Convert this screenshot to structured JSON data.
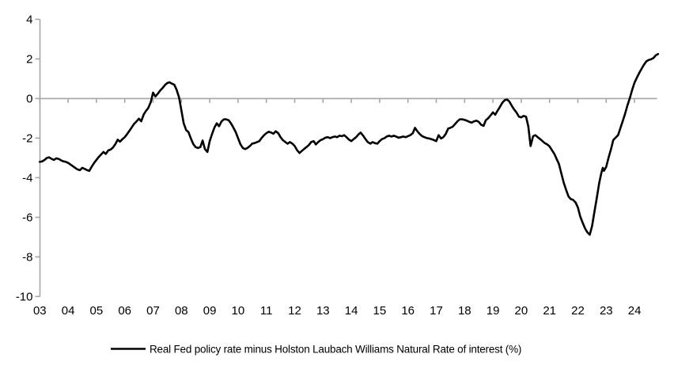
{
  "colors": {
    "background": "#ffffff",
    "axis": "#a6a6a6",
    "series_line": "#000000",
    "text": "#000000"
  },
  "chart_data": {
    "type": "line",
    "title": "",
    "xlabel": "",
    "ylabel": "",
    "ylim": [
      -10,
      4
    ],
    "y_ticks": [
      4,
      2,
      0,
      -2,
      -4,
      -6,
      -8,
      -10
    ],
    "x_tick_labels": [
      "03",
      "04",
      "05",
      "06",
      "07",
      "08",
      "09",
      "10",
      "11",
      "12",
      "13",
      "14",
      "15",
      "16",
      "17",
      "18",
      "19",
      "20",
      "21",
      "22",
      "23",
      "24"
    ],
    "x_range_years": [
      2003.0,
      2024.83
    ],
    "grid": "none",
    "axis_crosses_at_zero": true,
    "legend_position": "bottom",
    "series": [
      {
        "name": "Real Fed policy rate minus Holston Laubach Williams Natural Rate of interest (%)",
        "color": "#000000",
        "points": [
          [
            2003.0,
            -3.2
          ],
          [
            2003.08,
            -3.18
          ],
          [
            2003.17,
            -3.1
          ],
          [
            2003.25,
            -3.0
          ],
          [
            2003.33,
            -2.97
          ],
          [
            2003.42,
            -3.05
          ],
          [
            2003.5,
            -3.1
          ],
          [
            2003.58,
            -3.02
          ],
          [
            2003.67,
            -3.05
          ],
          [
            2003.75,
            -3.12
          ],
          [
            2003.83,
            -3.17
          ],
          [
            2003.92,
            -3.2
          ],
          [
            2004.0,
            -3.25
          ],
          [
            2004.08,
            -3.33
          ],
          [
            2004.17,
            -3.42
          ],
          [
            2004.25,
            -3.5
          ],
          [
            2004.33,
            -3.58
          ],
          [
            2004.42,
            -3.62
          ],
          [
            2004.5,
            -3.5
          ],
          [
            2004.58,
            -3.55
          ],
          [
            2004.67,
            -3.62
          ],
          [
            2004.75,
            -3.65
          ],
          [
            2004.83,
            -3.45
          ],
          [
            2004.92,
            -3.25
          ],
          [
            2005.0,
            -3.1
          ],
          [
            2005.08,
            -2.95
          ],
          [
            2005.17,
            -2.82
          ],
          [
            2005.25,
            -2.7
          ],
          [
            2005.33,
            -2.8
          ],
          [
            2005.42,
            -2.62
          ],
          [
            2005.5,
            -2.58
          ],
          [
            2005.58,
            -2.48
          ],
          [
            2005.67,
            -2.3
          ],
          [
            2005.75,
            -2.08
          ],
          [
            2005.83,
            -2.18
          ],
          [
            2005.92,
            -2.05
          ],
          [
            2006.0,
            -1.95
          ],
          [
            2006.08,
            -1.8
          ],
          [
            2006.17,
            -1.62
          ],
          [
            2006.25,
            -1.45
          ],
          [
            2006.33,
            -1.28
          ],
          [
            2006.42,
            -1.15
          ],
          [
            2006.5,
            -1.02
          ],
          [
            2006.58,
            -1.15
          ],
          [
            2006.67,
            -0.8
          ],
          [
            2006.75,
            -0.62
          ],
          [
            2006.83,
            -0.48
          ],
          [
            2006.92,
            -0.18
          ],
          [
            2007.0,
            0.3
          ],
          [
            2007.08,
            0.1
          ],
          [
            2007.17,
            0.25
          ],
          [
            2007.25,
            0.4
          ],
          [
            2007.33,
            0.52
          ],
          [
            2007.42,
            0.68
          ],
          [
            2007.5,
            0.78
          ],
          [
            2007.58,
            0.82
          ],
          [
            2007.67,
            0.75
          ],
          [
            2007.75,
            0.7
          ],
          [
            2007.83,
            0.45
          ],
          [
            2007.92,
            0.05
          ],
          [
            2008.0,
            -0.6
          ],
          [
            2008.08,
            -1.25
          ],
          [
            2008.17,
            -1.6
          ],
          [
            2008.25,
            -1.7
          ],
          [
            2008.33,
            -2.0
          ],
          [
            2008.42,
            -2.3
          ],
          [
            2008.5,
            -2.45
          ],
          [
            2008.58,
            -2.5
          ],
          [
            2008.67,
            -2.45
          ],
          [
            2008.75,
            -2.12
          ],
          [
            2008.83,
            -2.55
          ],
          [
            2008.92,
            -2.7
          ],
          [
            2009.0,
            -2.15
          ],
          [
            2009.08,
            -1.8
          ],
          [
            2009.17,
            -1.45
          ],
          [
            2009.25,
            -1.25
          ],
          [
            2009.33,
            -1.4
          ],
          [
            2009.42,
            -1.15
          ],
          [
            2009.5,
            -1.05
          ],
          [
            2009.58,
            -1.05
          ],
          [
            2009.67,
            -1.1
          ],
          [
            2009.75,
            -1.25
          ],
          [
            2009.83,
            -1.45
          ],
          [
            2009.92,
            -1.7
          ],
          [
            2010.0,
            -2.0
          ],
          [
            2010.08,
            -2.3
          ],
          [
            2010.17,
            -2.5
          ],
          [
            2010.25,
            -2.55
          ],
          [
            2010.33,
            -2.5
          ],
          [
            2010.42,
            -2.4
          ],
          [
            2010.5,
            -2.28
          ],
          [
            2010.58,
            -2.25
          ],
          [
            2010.67,
            -2.2
          ],
          [
            2010.75,
            -2.15
          ],
          [
            2010.83,
            -2.0
          ],
          [
            2010.92,
            -1.85
          ],
          [
            2011.0,
            -1.75
          ],
          [
            2011.08,
            -1.68
          ],
          [
            2011.17,
            -1.72
          ],
          [
            2011.25,
            -1.78
          ],
          [
            2011.33,
            -1.65
          ],
          [
            2011.42,
            -1.75
          ],
          [
            2011.5,
            -1.95
          ],
          [
            2011.58,
            -2.1
          ],
          [
            2011.67,
            -2.2
          ],
          [
            2011.75,
            -2.28
          ],
          [
            2011.83,
            -2.2
          ],
          [
            2011.92,
            -2.28
          ],
          [
            2012.0,
            -2.4
          ],
          [
            2012.08,
            -2.6
          ],
          [
            2012.17,
            -2.75
          ],
          [
            2012.25,
            -2.65
          ],
          [
            2012.33,
            -2.55
          ],
          [
            2012.42,
            -2.45
          ],
          [
            2012.5,
            -2.35
          ],
          [
            2012.58,
            -2.2
          ],
          [
            2012.67,
            -2.15
          ],
          [
            2012.75,
            -2.32
          ],
          [
            2012.83,
            -2.2
          ],
          [
            2012.92,
            -2.1
          ],
          [
            2013.0,
            -2.05
          ],
          [
            2013.08,
            -1.98
          ],
          [
            2013.17,
            -1.95
          ],
          [
            2013.25,
            -2.0
          ],
          [
            2013.33,
            -1.95
          ],
          [
            2013.42,
            -1.92
          ],
          [
            2013.5,
            -1.95
          ],
          [
            2013.58,
            -1.88
          ],
          [
            2013.67,
            -1.9
          ],
          [
            2013.75,
            -1.85
          ],
          [
            2013.83,
            -1.95
          ],
          [
            2013.92,
            -2.08
          ],
          [
            2014.0,
            -2.15
          ],
          [
            2014.08,
            -2.05
          ],
          [
            2014.17,
            -1.95
          ],
          [
            2014.25,
            -1.82
          ],
          [
            2014.33,
            -1.72
          ],
          [
            2014.42,
            -1.88
          ],
          [
            2014.5,
            -2.05
          ],
          [
            2014.58,
            -2.2
          ],
          [
            2014.67,
            -2.28
          ],
          [
            2014.75,
            -2.2
          ],
          [
            2014.83,
            -2.25
          ],
          [
            2014.92,
            -2.28
          ],
          [
            2015.0,
            -2.15
          ],
          [
            2015.08,
            -2.05
          ],
          [
            2015.17,
            -2.0
          ],
          [
            2015.25,
            -1.92
          ],
          [
            2015.33,
            -1.88
          ],
          [
            2015.42,
            -1.92
          ],
          [
            2015.5,
            -1.88
          ],
          [
            2015.58,
            -1.92
          ],
          [
            2015.67,
            -1.98
          ],
          [
            2015.75,
            -1.95
          ],
          [
            2015.83,
            -1.92
          ],
          [
            2015.92,
            -1.95
          ],
          [
            2016.0,
            -1.9
          ],
          [
            2016.08,
            -1.85
          ],
          [
            2016.17,
            -1.75
          ],
          [
            2016.25,
            -1.48
          ],
          [
            2016.33,
            -1.65
          ],
          [
            2016.42,
            -1.8
          ],
          [
            2016.5,
            -1.9
          ],
          [
            2016.58,
            -1.95
          ],
          [
            2016.67,
            -2.0
          ],
          [
            2016.75,
            -2.02
          ],
          [
            2016.83,
            -2.05
          ],
          [
            2016.92,
            -2.1
          ],
          [
            2017.0,
            -2.15
          ],
          [
            2017.08,
            -1.85
          ],
          [
            2017.17,
            -2.02
          ],
          [
            2017.25,
            -1.95
          ],
          [
            2017.33,
            -1.8
          ],
          [
            2017.42,
            -1.52
          ],
          [
            2017.5,
            -1.48
          ],
          [
            2017.58,
            -1.42
          ],
          [
            2017.67,
            -1.28
          ],
          [
            2017.75,
            -1.15
          ],
          [
            2017.83,
            -1.05
          ],
          [
            2017.92,
            -1.05
          ],
          [
            2018.0,
            -1.08
          ],
          [
            2018.08,
            -1.12
          ],
          [
            2018.17,
            -1.18
          ],
          [
            2018.25,
            -1.22
          ],
          [
            2018.33,
            -1.15
          ],
          [
            2018.42,
            -1.12
          ],
          [
            2018.5,
            -1.18
          ],
          [
            2018.58,
            -1.32
          ],
          [
            2018.67,
            -1.38
          ],
          [
            2018.75,
            -1.1
          ],
          [
            2018.83,
            -1.0
          ],
          [
            2018.92,
            -0.85
          ],
          [
            2019.0,
            -0.7
          ],
          [
            2019.08,
            -0.82
          ],
          [
            2019.17,
            -0.6
          ],
          [
            2019.25,
            -0.42
          ],
          [
            2019.33,
            -0.22
          ],
          [
            2019.42,
            -0.08
          ],
          [
            2019.5,
            -0.05
          ],
          [
            2019.58,
            -0.15
          ],
          [
            2019.67,
            -0.38
          ],
          [
            2019.75,
            -0.55
          ],
          [
            2019.83,
            -0.7
          ],
          [
            2019.92,
            -0.92
          ],
          [
            2020.0,
            -0.95
          ],
          [
            2020.08,
            -0.88
          ],
          [
            2020.17,
            -0.92
          ],
          [
            2020.25,
            -1.4
          ],
          [
            2020.33,
            -2.4
          ],
          [
            2020.42,
            -1.9
          ],
          [
            2020.5,
            -1.85
          ],
          [
            2020.58,
            -1.95
          ],
          [
            2020.67,
            -2.05
          ],
          [
            2020.75,
            -2.15
          ],
          [
            2020.83,
            -2.25
          ],
          [
            2020.92,
            -2.32
          ],
          [
            2021.0,
            -2.42
          ],
          [
            2021.08,
            -2.6
          ],
          [
            2021.17,
            -2.8
          ],
          [
            2021.25,
            -3.05
          ],
          [
            2021.33,
            -3.3
          ],
          [
            2021.42,
            -3.8
          ],
          [
            2021.5,
            -4.25
          ],
          [
            2021.58,
            -4.6
          ],
          [
            2021.67,
            -4.95
          ],
          [
            2021.75,
            -5.08
          ],
          [
            2021.83,
            -5.12
          ],
          [
            2021.92,
            -5.25
          ],
          [
            2022.0,
            -5.5
          ],
          [
            2022.08,
            -5.95
          ],
          [
            2022.17,
            -6.28
          ],
          [
            2022.25,
            -6.55
          ],
          [
            2022.33,
            -6.75
          ],
          [
            2022.42,
            -6.88
          ],
          [
            2022.5,
            -6.45
          ],
          [
            2022.58,
            -5.75
          ],
          [
            2022.67,
            -5.0
          ],
          [
            2022.75,
            -4.3
          ],
          [
            2022.83,
            -3.75
          ],
          [
            2022.88,
            -3.5
          ],
          [
            2022.92,
            -3.65
          ],
          [
            2023.0,
            -3.45
          ],
          [
            2023.08,
            -3.0
          ],
          [
            2023.17,
            -2.55
          ],
          [
            2023.25,
            -2.1
          ],
          [
            2023.33,
            -1.98
          ],
          [
            2023.42,
            -1.85
          ],
          [
            2023.5,
            -1.5
          ],
          [
            2023.58,
            -1.15
          ],
          [
            2023.67,
            -0.75
          ],
          [
            2023.75,
            -0.35
          ],
          [
            2023.83,
            0.0
          ],
          [
            2023.92,
            0.45
          ],
          [
            2024.0,
            0.8
          ],
          [
            2024.08,
            1.05
          ],
          [
            2024.17,
            1.3
          ],
          [
            2024.25,
            1.5
          ],
          [
            2024.33,
            1.7
          ],
          [
            2024.42,
            1.88
          ],
          [
            2024.5,
            1.95
          ],
          [
            2024.58,
            1.98
          ],
          [
            2024.67,
            2.05
          ],
          [
            2024.75,
            2.18
          ],
          [
            2024.83,
            2.25
          ]
        ]
      }
    ]
  }
}
